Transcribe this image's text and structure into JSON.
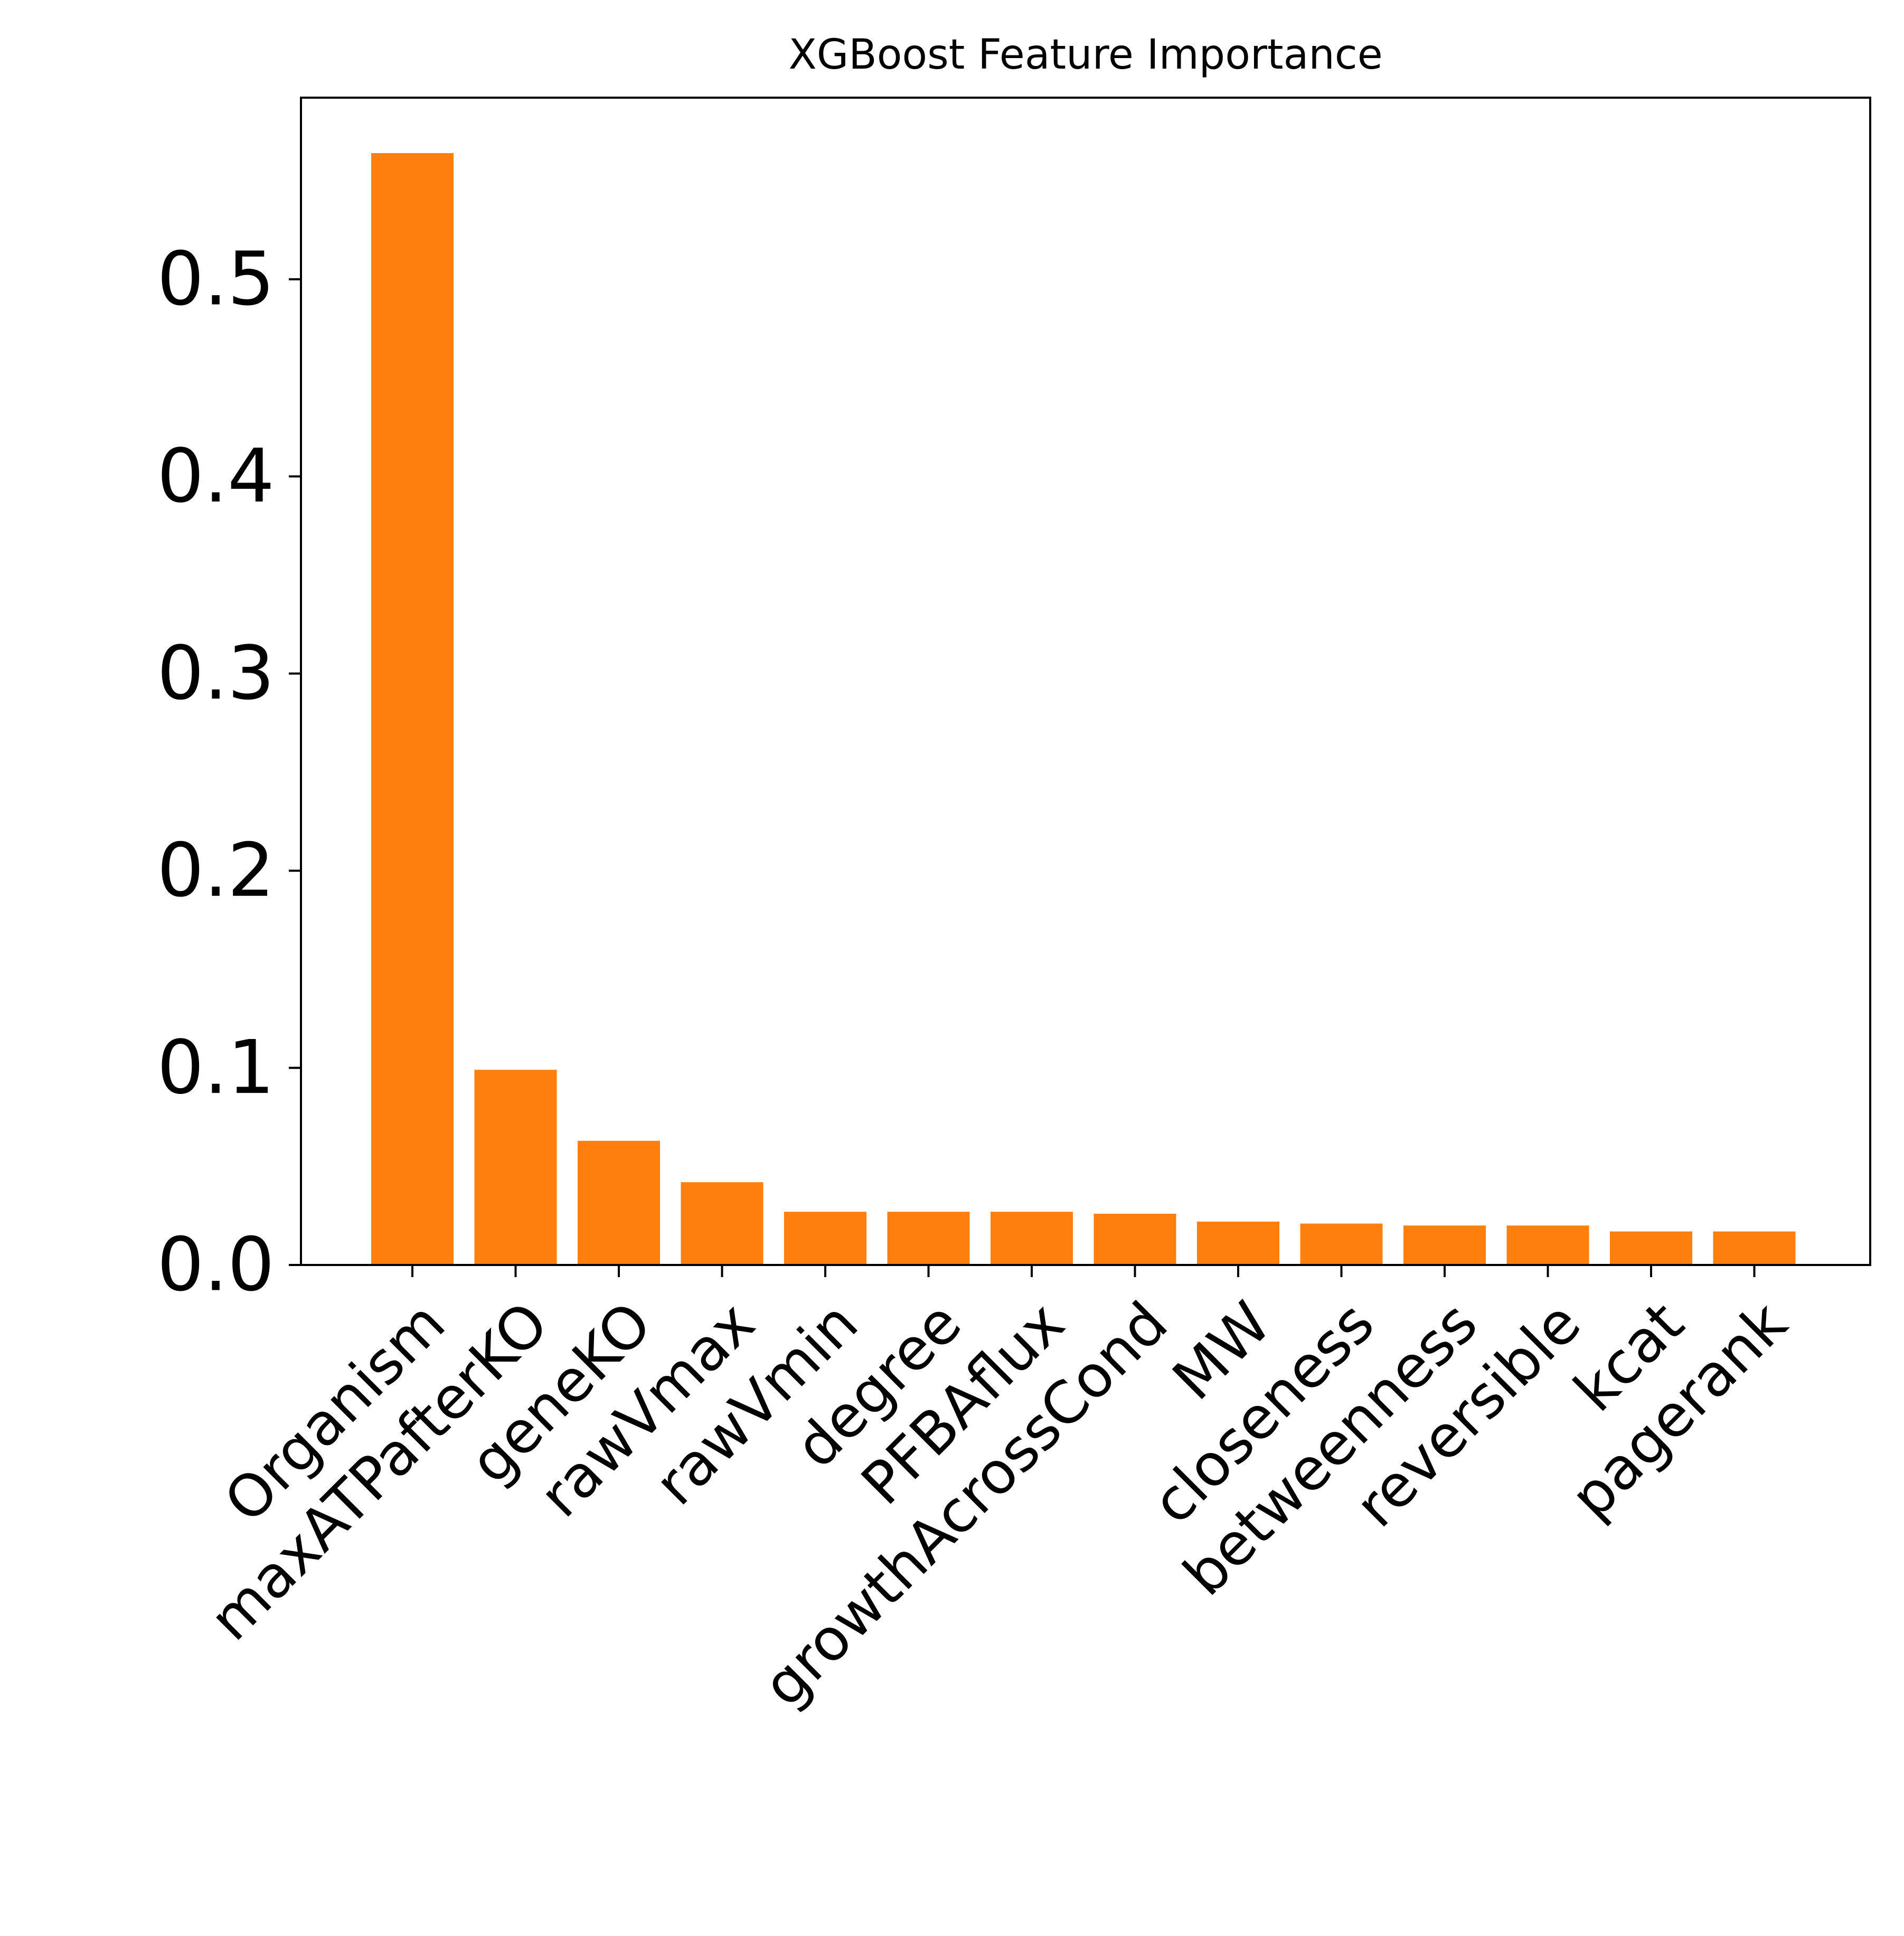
{
  "chart_data": {
    "type": "bar",
    "title": "XGBoost Feature Importance",
    "xlabel": "",
    "ylabel": "",
    "categories": [
      "Organism",
      "maxATPafterKO",
      "geneKO",
      "rawVmax",
      "rawVmin",
      "degree",
      "PFBAflux",
      "growthAcrossCond",
      "MW",
      "closeness",
      "betweenness",
      "reversible",
      "kcat",
      "pagerank"
    ],
    "values": [
      0.564,
      0.099,
      0.063,
      0.042,
      0.027,
      0.027,
      0.027,
      0.026,
      0.022,
      0.021,
      0.02,
      0.02,
      0.017,
      0.017
    ],
    "yticks": [
      0.0,
      0.1,
      0.2,
      0.3,
      0.4,
      0.5
    ],
    "ytick_labels": [
      "0.0",
      "0.1",
      "0.2",
      "0.3",
      "0.4",
      "0.5"
    ],
    "ylim": [
      0,
      0.592
    ],
    "grid": false,
    "bar_color": "#ff7f0e"
  }
}
